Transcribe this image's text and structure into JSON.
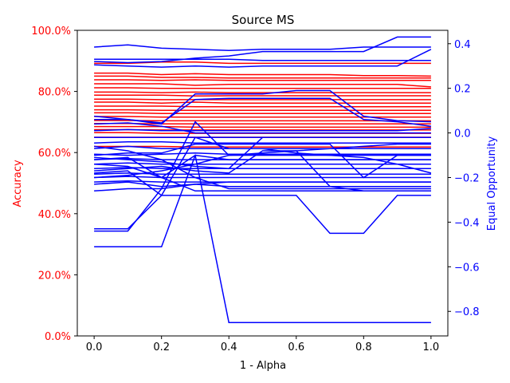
{
  "chart_data": {
    "type": "line",
    "title": "Source MS",
    "xlabel": "1 - Alpha",
    "ylabel_left": "Accuracy",
    "ylabel_right": "Equal Opportunity",
    "x": [
      0.0,
      0.1,
      0.2,
      0.3,
      0.4,
      0.5,
      0.6,
      0.7,
      0.8,
      0.9,
      1.0
    ],
    "xlim": [
      -0.05,
      1.05
    ],
    "xticks": [
      0.0,
      0.2,
      0.4,
      0.6,
      0.8,
      1.0
    ],
    "xtick_labels": [
      "0.0",
      "0.2",
      "0.4",
      "0.6",
      "0.8",
      "1.0"
    ],
    "ylim_left": [
      0,
      100
    ],
    "yticks_left": [
      0,
      20,
      40,
      60,
      80,
      100
    ],
    "ytick_labels_left": [
      "0.0%",
      "20.0%",
      "40.0%",
      "60.0%",
      "80.0%",
      "100.0%"
    ],
    "ylim_right": [
      -0.91,
      0.46
    ],
    "yticks_right": [
      -0.8,
      -0.6,
      -0.4,
      -0.2,
      0.0,
      0.2,
      0.4
    ],
    "ytick_labels_right": [
      "−0.8",
      "−0.6",
      "−0.4",
      "−0.2",
      "0.0",
      "0.2",
      "0.4"
    ],
    "left_axis_color": "#ff0000",
    "right_axis_color": "#0000ff",
    "accuracy_series": [
      [
        89.2,
        89.2,
        89.6,
        89.6,
        89.2,
        89.2,
        89.2,
        89.2,
        89.2,
        89.2,
        89.2
      ],
      [
        86.0,
        86.0,
        85.5,
        85.8,
        85.5,
        85.5,
        85.5,
        85.5,
        85.2,
        85.2,
        85.0
      ],
      [
        85.0,
        85.0,
        84.6,
        84.6,
        84.4,
        84.4,
        84.4,
        84.4,
        84.4,
        84.4,
        84.4
      ],
      [
        83.8,
        83.8,
        83.6,
        83.8,
        83.6,
        83.6,
        83.6,
        83.6,
        83.6,
        83.6,
        83.6
      ],
      [
        82.5,
        82.5,
        82.5,
        82.0,
        82.3,
        82.3,
        82.3,
        82.3,
        82.3,
        82.3,
        81.5
      ],
      [
        81.2,
        81.2,
        81.0,
        81.0,
        81.0,
        81.0,
        81.0,
        81.0,
        81.0,
        81.0,
        81.0
      ],
      [
        79.8,
        79.8,
        79.6,
        79.8,
        79.6,
        79.6,
        79.6,
        79.6,
        79.6,
        79.6,
        79.6
      ],
      [
        78.8,
        78.8,
        78.8,
        78.5,
        78.6,
        78.6,
        78.6,
        78.6,
        78.6,
        78.6,
        78.6
      ],
      [
        77.5,
        77.5,
        77.3,
        77.3,
        77.3,
        77.3,
        77.3,
        77.3,
        77.3,
        77.3,
        77.3
      ],
      [
        76.5,
        76.5,
        76.2,
        76.5,
        76.2,
        76.2,
        76.2,
        76.2,
        76.2,
        76.2,
        76.2
      ],
      [
        75.2,
        75.2,
        75.2,
        75.0,
        75.0,
        75.0,
        75.0,
        75.0,
        75.0,
        75.0,
        75.0
      ],
      [
        74.0,
        74.0,
        73.8,
        73.8,
        73.8,
        73.8,
        73.8,
        73.8,
        73.8,
        73.8,
        73.8
      ],
      [
        73.0,
        73.0,
        72.8,
        72.8,
        72.8,
        72.8,
        72.8,
        72.8,
        72.8,
        72.8,
        72.8
      ],
      [
        71.8,
        71.8,
        71.6,
        71.6,
        71.6,
        71.6,
        71.6,
        71.6,
        71.6,
        71.6,
        71.6
      ],
      [
        70.5,
        70.5,
        70.4,
        70.4,
        70.4,
        70.4,
        70.4,
        70.4,
        70.4,
        70.4,
        70.4
      ],
      [
        69.5,
        69.5,
        69.4,
        69.4,
        69.4,
        69.4,
        69.4,
        69.4,
        69.4,
        69.4,
        69.4
      ],
      [
        68.5,
        68.5,
        68.5,
        68.3,
        68.3,
        68.3,
        68.3,
        68.3,
        68.3,
        68.3,
        68.3
      ],
      [
        67.5,
        67.5,
        67.4,
        67.4,
        67.4,
        67.4,
        67.4,
        67.4,
        67.4,
        67.4,
        67.4
      ],
      [
        66.5,
        66.5,
        66.3,
        66.3,
        66.3,
        66.3,
        66.3,
        66.3,
        66.3,
        66.3,
        66.3
      ],
      [
        65.0,
        65.0,
        65.0,
        65.0,
        65.0,
        65.0,
        65.0,
        65.0,
        65.0,
        65.0,
        65.0
      ],
      [
        62.0,
        62.0,
        62.0,
        61.8,
        61.8,
        61.8,
        61.8,
        61.8,
        61.8,
        61.8,
        61.8
      ]
    ],
    "equal_opportunity_series": [
      [
        0.385,
        0.395,
        0.38,
        0.375,
        0.37,
        0.375,
        0.375,
        0.375,
        0.385,
        0.385,
        0.385
      ],
      [
        0.32,
        0.315,
        0.32,
        0.335,
        0.345,
        0.365,
        0.365,
        0.365,
        0.365,
        0.43,
        0.43
      ],
      [
        0.305,
        0.3,
        0.295,
        0.3,
        0.295,
        0.3,
        0.3,
        0.3,
        0.3,
        0.3,
        0.375
      ],
      [
        0.33,
        0.33,
        0.33,
        0.33,
        0.33,
        0.325,
        0.325,
        0.325,
        0.325,
        0.325,
        0.325
      ],
      [
        0.075,
        0.06,
        0.04,
        0.175,
        0.175,
        0.175,
        0.19,
        0.19,
        0.075,
        0.055,
        0.05
      ],
      [
        0.06,
        0.06,
        0.045,
        0.15,
        0.155,
        0.155,
        0.155,
        0.155,
        0.06,
        0.05,
        0.03
      ],
      [
        0.04,
        0.045,
        0.03,
        0.0,
        0.0,
        0.0,
        0.0,
        0.0,
        0.0,
        0.0,
        0.0
      ],
      [
        0.01,
        0.015,
        0.01,
        0.01,
        0.01,
        0.01,
        0.01,
        0.01,
        0.01,
        0.01,
        0.02
      ],
      [
        -0.02,
        -0.02,
        -0.02,
        -0.02,
        -0.02,
        -0.02,
        -0.02,
        -0.02,
        -0.02,
        -0.02,
        -0.02
      ],
      [
        -0.045,
        -0.04,
        -0.04,
        -0.045,
        -0.045,
        -0.045,
        -0.045,
        -0.045,
        -0.045,
        -0.045,
        -0.045
      ],
      [
        -0.07,
        -0.06,
        -0.07,
        -0.07,
        -0.07,
        -0.07,
        -0.07,
        -0.07,
        -0.07,
        -0.07,
        -0.07
      ],
      [
        -0.095,
        -0.1,
        -0.095,
        -0.09,
        -0.095,
        -0.095,
        -0.095,
        -0.095,
        -0.095,
        -0.095,
        -0.095
      ],
      [
        -0.12,
        -0.115,
        -0.12,
        -0.12,
        -0.12,
        -0.12,
        -0.12,
        -0.12,
        -0.12,
        -0.12,
        -0.12
      ],
      [
        -0.14,
        -0.135,
        -0.14,
        -0.14,
        -0.14,
        -0.14,
        -0.14,
        -0.14,
        -0.14,
        -0.14,
        -0.14
      ],
      [
        -0.16,
        -0.155,
        -0.16,
        -0.16,
        -0.16,
        -0.16,
        -0.16,
        -0.16,
        -0.16,
        -0.16,
        -0.16
      ],
      [
        -0.185,
        -0.18,
        -0.185,
        -0.185,
        -0.185,
        -0.185,
        -0.185,
        -0.185,
        -0.185,
        -0.185,
        -0.185
      ],
      [
        -0.2,
        -0.195,
        -0.2,
        -0.2,
        -0.2,
        -0.2,
        -0.2,
        -0.2,
        -0.2,
        -0.2,
        -0.2
      ],
      [
        -0.22,
        -0.215,
        -0.22,
        -0.22,
        -0.22,
        -0.22,
        -0.22,
        -0.22,
        -0.22,
        -0.22,
        -0.22
      ],
      [
        -0.23,
        -0.22,
        -0.24,
        -0.23,
        -0.22,
        -0.22,
        -0.22,
        -0.22,
        -0.22,
        -0.22,
        -0.22
      ],
      [
        -0.26,
        -0.25,
        -0.25,
        -0.23,
        -0.24,
        -0.24,
        -0.24,
        -0.24,
        -0.24,
        -0.24,
        -0.24
      ],
      [
        -0.43,
        -0.43,
        -0.28,
        -0.02,
        -0.07,
        -0.07,
        -0.09,
        -0.1,
        -0.11,
        -0.14,
        -0.18
      ],
      [
        -0.44,
        -0.44,
        -0.25,
        0.05,
        -0.1,
        -0.1,
        -0.1,
        -0.1,
        -0.1,
        -0.1,
        -0.1
      ],
      [
        -0.51,
        -0.51,
        -0.51,
        -0.1,
        -0.12,
        -0.12,
        -0.12,
        -0.12,
        -0.12,
        -0.12,
        -0.12
      ],
      [
        -0.14,
        -0.15,
        -0.2,
        -0.26,
        -0.26,
        -0.26,
        -0.26,
        -0.26,
        -0.26,
        -0.26,
        -0.26
      ],
      [
        -0.2,
        -0.19,
        -0.17,
        -0.14,
        -0.1,
        -0.09,
        -0.08,
        -0.07,
        -0.06,
        -0.05,
        -0.05
      ],
      [
        -0.06,
        -0.08,
        -0.12,
        -0.2,
        -0.25,
        -0.25,
        -0.25,
        -0.25,
        -0.25,
        -0.25,
        -0.25
      ],
      [
        -0.12,
        -0.11,
        -0.2,
        -0.1,
        -0.85,
        -0.85,
        -0.85,
        -0.85,
        -0.85,
        -0.85,
        -0.85
      ],
      [
        -0.18,
        -0.17,
        -0.28,
        -0.28,
        -0.28,
        -0.28,
        -0.28,
        -0.45,
        -0.45,
        -0.28,
        -0.28
      ],
      [
        -0.17,
        -0.16,
        -0.15,
        -0.17,
        -0.18,
        -0.08,
        -0.08,
        -0.24,
        -0.26,
        -0.26,
        -0.26
      ],
      [
        -0.1,
        -0.09,
        -0.09,
        -0.05,
        -0.05,
        -0.05,
        -0.05,
        -0.05,
        -0.2,
        -0.1,
        -0.1
      ],
      [
        -0.11,
        -0.12,
        -0.13,
        -0.15,
        -0.16,
        -0.02,
        -0.02,
        -0.02,
        -0.02,
        -0.02,
        -0.02
      ]
    ]
  }
}
